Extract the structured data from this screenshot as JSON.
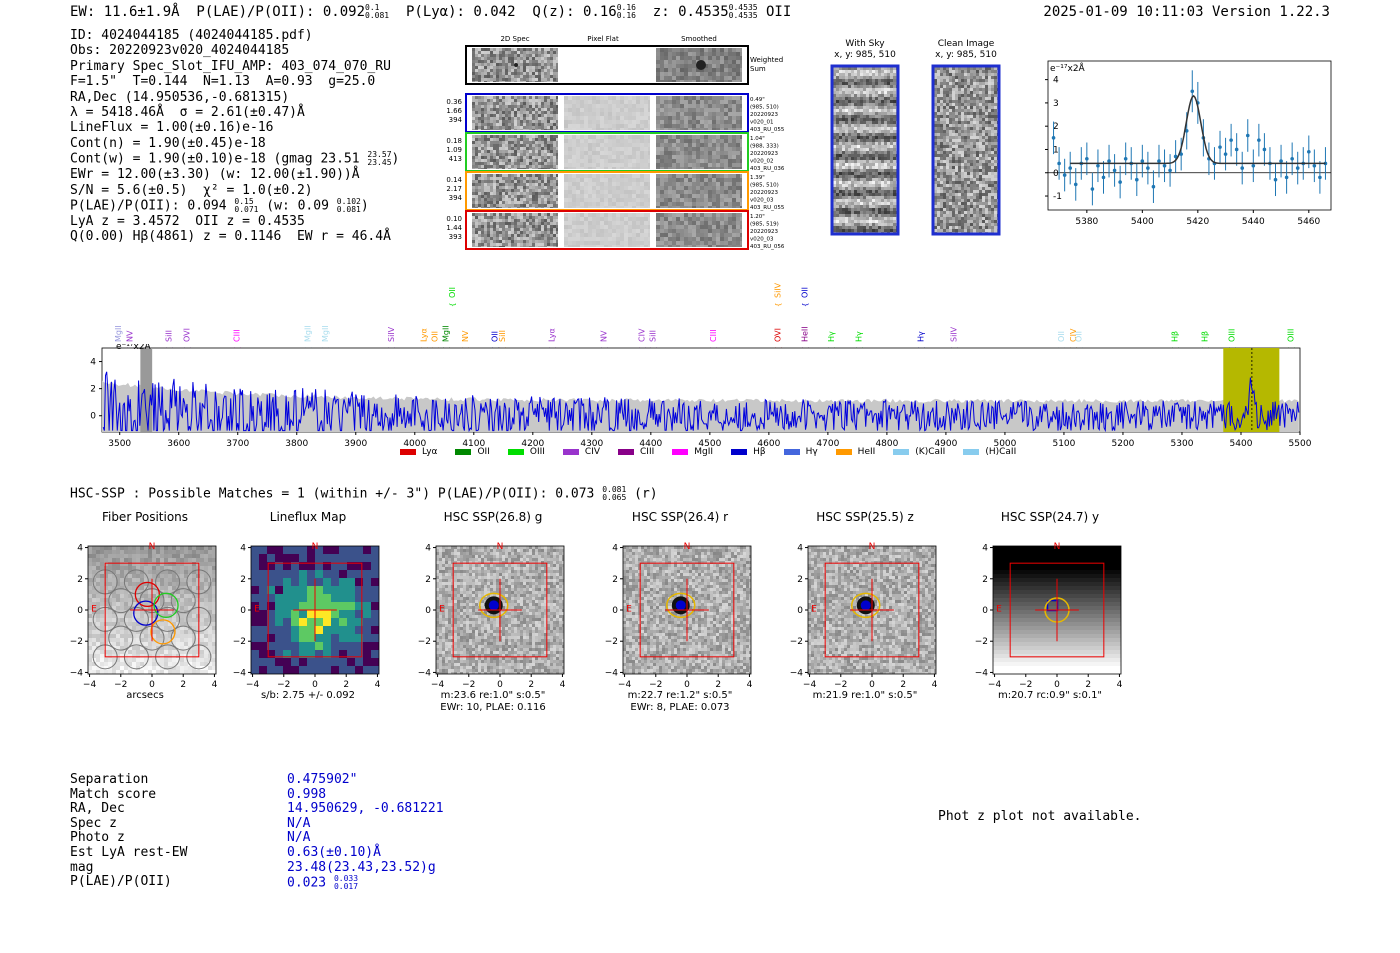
{
  "header": {
    "left": "EW: 11.6±1.9Å  P(LAE)/P(OII): 0.092",
    "plae_hi": "0.1",
    "plae_lo": "0.081",
    "plya": "  P(Lyα): 0.042  Q(z): 0.16",
    "qz_hi": "0.16",
    "qz_lo": "0.16",
    "zpart": "  z: 0.4535",
    "z_hi": "0.4535",
    "z_lo": "0.4535",
    "tail": " OII",
    "datetime": "2025-01-09 10:11:03",
    "version": "Version 1.22.3"
  },
  "info": {
    "lines": [
      "ID: 4024044185 (4024044185.pdf)",
      "Obs: 20220923v020_4024044185",
      "Primary Spec_Slot_IFU_AMP: 403_074_070_RU",
      "F=1.5\"  T=0.144  N=1.13  A=0.93  g=25.0",
      "RA,Dec (14.950536,-0.681315)",
      "λ = 5418.46Å  σ = 2.61(±0.47)Å",
      "LineFlux = 1.00(±0.16)e-16",
      "Cont(n) = 1.90(±0.45)e-18"
    ],
    "contw": "Cont(w) = 1.90(±0.10)e-18 (gmag 23.51",
    "contw_hi": "23.57",
    "contw_lo": "23.45",
    "lines2": [
      "EWr = 12.00(±3.30) (w: 12.00(±1.90))Å",
      "S/N = 5.6(±0.5)  χ² = 1.0(±0.2)"
    ],
    "plae": "P(LAE)/P(OII): 0.094",
    "plae_hi": "0.15",
    "plae_lo": "0.071",
    "plae_w": " (w: 0.09",
    "plae_w_hi": "0.102",
    "plae_w_lo": "0.081",
    "plae_w_end": ")",
    "lines3": [
      "LyA z = 3.4572  OII z = 0.4535",
      "Q(0.00) Hβ(4861) z = 0.1146  EW r = 46.4Å"
    ]
  },
  "spec2d": {
    "col_titles": [
      "2D Spec",
      "Pixel Flat",
      "Smoothed"
    ],
    "weighted_label": "Weighted Sum",
    "rows": [
      {
        "left": [
          "0.36",
          "1.66",
          "394"
        ],
        "right": [
          "0.49\"",
          "(985, 510)",
          "20220923",
          "v020_01",
          "403_RU_055"
        ],
        "color": "#0000cc"
      },
      {
        "left": [
          "0.18",
          "1.09",
          "413"
        ],
        "right": [
          "1.04\"",
          "(988, 333)",
          "20220923",
          "v020_02",
          "403_RU_036"
        ],
        "color": "#22cc22"
      },
      {
        "left": [
          "0.14",
          "2.17",
          "394"
        ],
        "right": [
          "1.39\"",
          "(985, 510)",
          "20220923",
          "v020_03",
          "403_RU_055"
        ],
        "color": "#ff9900"
      },
      {
        "left": [
          "0.10",
          "1.44",
          "393"
        ],
        "right": [
          "1.20\"",
          "(985, 519)",
          "20220923",
          "v020_03",
          "403_RU_056"
        ],
        "color": "#dd0000"
      }
    ]
  },
  "sky": {
    "title1": "With Sky",
    "title2": "x, y: 985, 510"
  },
  "clean": {
    "title1": "Clean Image",
    "title2": "x, y: 985, 510"
  },
  "chart_data": [
    {
      "type": "line",
      "title": "",
      "unit_label": "e⁻¹⁷x2Å",
      "xlim": [
        5366,
        5468
      ],
      "ylim": [
        -1.6,
        4.8
      ],
      "xticks": [
        5380,
        5400,
        5420,
        5440,
        5460
      ],
      "yticks": [
        -1,
        0,
        1,
        2,
        3,
        4
      ],
      "fit_center": 5418.46,
      "fit_sigma": 2.61,
      "fit_amp": 2.9,
      "fit_base": 0.4,
      "x": [
        5368,
        5370,
        5372,
        5374,
        5376,
        5378,
        5380,
        5382,
        5384,
        5386,
        5388,
        5390,
        5392,
        5394,
        5396,
        5398,
        5400,
        5402,
        5404,
        5406,
        5408,
        5410,
        5412,
        5414,
        5416,
        5418,
        5420,
        5422,
        5424,
        5426,
        5428,
        5430,
        5432,
        5434,
        5436,
        5438,
        5440,
        5442,
        5444,
        5446,
        5448,
        5450,
        5452,
        5454,
        5456,
        5458,
        5460,
        5462,
        5464,
        5466
      ],
      "y": [
        1.5,
        0.4,
        -0.1,
        0.2,
        -0.5,
        0.4,
        0.6,
        -0.7,
        0.3,
        -0.2,
        0.5,
        0.1,
        -0.4,
        0.6,
        0.4,
        -0.3,
        0.5,
        0.2,
        -0.6,
        0.5,
        0.3,
        0.1,
        0.7,
        0.8,
        1.8,
        3.5,
        3.0,
        1.5,
        0.6,
        0.4,
        1.1,
        0.8,
        1.4,
        1.0,
        0.2,
        1.6,
        0.3,
        1.4,
        1.0,
        0.4,
        -0.3,
        0.5,
        -0.2,
        0.6,
        0.2,
        0.4,
        0.9,
        0.3,
        -0.2,
        0.4
      ],
      "yerr": [
        0.7,
        0.7,
        0.7,
        0.7,
        0.7,
        0.7,
        0.7,
        0.7,
        0.7,
        0.7,
        0.7,
        0.7,
        0.7,
        0.7,
        0.7,
        0.7,
        0.7,
        0.7,
        0.7,
        0.7,
        0.7,
        0.7,
        0.7,
        0.7,
        0.8,
        0.9,
        0.9,
        0.8,
        0.7,
        0.7,
        0.7,
        0.7,
        0.7,
        0.7,
        0.7,
        0.7,
        0.7,
        0.7,
        0.7,
        0.7,
        0.7,
        0.7,
        0.7,
        0.7,
        0.7,
        0.7,
        0.7,
        0.7,
        0.7,
        0.7
      ]
    },
    {
      "type": "line",
      "title": "",
      "unit_label": "e⁻¹⁷x2Å",
      "xlim": [
        3470,
        5500
      ],
      "ylim": [
        -1.2,
        5.0
      ],
      "xticks": [
        3500,
        3600,
        3700,
        3800,
        3900,
        4000,
        4100,
        4200,
        4300,
        4400,
        4500,
        4600,
        4700,
        4800,
        4900,
        5000,
        5100,
        5200,
        5300,
        5400,
        5500
      ],
      "yticks": [
        0,
        2,
        4
      ],
      "highlight_band": [
        5370,
        5465
      ],
      "highlight_line": 5418.46,
      "gray_band": [
        3535,
        3555
      ],
      "line_markers": [
        {
          "name": "MgII",
          "x": 3497,
          "color": "#9999dd"
        },
        {
          "name": "NV",
          "x": 3517,
          "color": "#9933cc"
        },
        {
          "name": "SiII",
          "x": 3583,
          "color": "#9933cc"
        },
        {
          "name": "OVI",
          "x": 3613,
          "color": "#9933cc"
        },
        {
          "name": "CIII",
          "x": 3698,
          "color": "#ff00ff"
        },
        {
          "name": "MgII",
          "x": 3818,
          "color": "#aaddee"
        },
        {
          "name": "MgII",
          "x": 3848,
          "color": "#aaddee"
        },
        {
          "name": "SiIV",
          "x": 3960,
          "color": "#9933cc"
        },
        {
          "name": "Lyα",
          "x": 4015,
          "color": "#ff9900"
        },
        {
          "name": "OII",
          "x": 4033,
          "color": "#ff9900"
        },
        {
          "name": "MgII",
          "x": 4052,
          "color": "#008800"
        },
        {
          "name": "OII",
          "x": 4063,
          "color": "#00dd00"
        },
        {
          "name": "NV",
          "x": 4085,
          "color": "#ff9900"
        },
        {
          "name": "OII",
          "x": 4135,
          "color": "#0000cc"
        },
        {
          "name": "SiII",
          "x": 4148,
          "color": "#ff9900"
        },
        {
          "name": "Lyα",
          "x": 4232,
          "color": "#9933cc"
        },
        {
          "name": "NV",
          "x": 4320,
          "color": "#9933cc"
        },
        {
          "name": "CIV",
          "x": 4384,
          "color": "#9933cc"
        },
        {
          "name": "SiII",
          "x": 4403,
          "color": "#9933cc"
        },
        {
          "name": "CIII",
          "x": 4505,
          "color": "#ff00ff"
        },
        {
          "name": "SiIV",
          "x": 4615,
          "color": "#ff9900"
        },
        {
          "name": "OVI",
          "x": 4615,
          "color": "#dd0000"
        },
        {
          "name": "OII",
          "x": 4660,
          "color": "#0000cc"
        },
        {
          "name": "HeII",
          "x": 4660,
          "color": "#880088"
        },
        {
          "name": "Hγ",
          "x": 4705,
          "color": "#00dd00"
        },
        {
          "name": "Hγ",
          "x": 4752,
          "color": "#00dd00"
        },
        {
          "name": "Hγ",
          "x": 4857,
          "color": "#0000cc"
        },
        {
          "name": "SiIV",
          "x": 4913,
          "color": "#9933cc"
        },
        {
          "name": "OII",
          "x": 5095,
          "color": "#aaddee"
        },
        {
          "name": "CIV",
          "x": 5115,
          "color": "#ff9900"
        },
        {
          "name": "OII",
          "x": 5125,
          "color": "#aaddee"
        },
        {
          "name": "Hβ",
          "x": 5287,
          "color": "#00dd00"
        },
        {
          "name": "Hβ",
          "x": 5338,
          "color": "#00dd00"
        },
        {
          "name": "OIII",
          "x": 5384,
          "color": "#00dd00"
        },
        {
          "name": "OIII",
          "x": 5484,
          "color": "#00dd00"
        }
      ],
      "legend": [
        {
          "name": "Lyα",
          "color": "#dd0000"
        },
        {
          "name": "OII",
          "color": "#008800"
        },
        {
          "name": "OIII",
          "color": "#00dd00"
        },
        {
          "name": "CIV",
          "color": "#9933cc"
        },
        {
          "name": "CIII",
          "color": "#880088"
        },
        {
          "name": "MgII",
          "color": "#ff00ff"
        },
        {
          "name": "Hβ",
          "color": "#0000cc"
        },
        {
          "name": "Hγ",
          "color": "#4466dd"
        },
        {
          "name": "HeII",
          "color": "#ff9900"
        },
        {
          "name": "(K)CaII",
          "color": "#88ccee"
        },
        {
          "name": "(H)CaII",
          "color": "#88ccee"
        }
      ]
    }
  ],
  "hsc_line": {
    "text": "HSC-SSP : Possible Matches = 1 (within +/- 3\")  P(LAE)/P(OII): 0.073",
    "hi": "0.081",
    "lo": "0.065",
    "tail": " (r)"
  },
  "cutouts": [
    {
      "title": "Fiber Positions",
      "caption": "arcsecs",
      "caption2": "",
      "kind": "fiber"
    },
    {
      "title": "Lineflux Map",
      "caption": "s/b: 2.75 +/- 0.092",
      "caption2": "",
      "kind": "flux"
    },
    {
      "title": "HSC SSP(26.8) g",
      "caption": "m:23.6  re:1.0\"  s:0.5\"",
      "caption2": "EWr: 10, PLAE: 0.116",
      "kind": "hsc"
    },
    {
      "title": "HSC SSP(26.4) r",
      "caption": "m:22.7  re:1.2\"  s:0.5\"",
      "caption2": "EWr: 8, PLAE: 0.073",
      "kind": "hsc"
    },
    {
      "title": "HSC SSP(25.5) z",
      "caption": "m:21.9  re:1.0\"  s:0.5\"",
      "caption2": "",
      "kind": "hsc"
    },
    {
      "title": "HSC SSP(24.7) y",
      "caption": "m:20.7 rc:0.9\"  s:0.1\"",
      "caption2": "",
      "kind": "yband"
    }
  ],
  "cutout_axis": {
    "ticks": [
      "4",
      "2",
      "0",
      "−2",
      "−4"
    ],
    "xticks": [
      "−4",
      "−2",
      "0",
      "2",
      "4"
    ],
    "north": "N",
    "east": "E"
  },
  "bottom": {
    "rows": [
      {
        "k": "Separation",
        "v": "0.475902\""
      },
      {
        "k": "Match score",
        "v": "0.998"
      },
      {
        "k": "RA, Dec",
        "v": "14.950629, -0.681221"
      },
      {
        "k": "Spec z",
        "v": "N/A"
      },
      {
        "k": "Photo z",
        "v": "N/A"
      },
      {
        "k": "Est LyA rest-EW",
        "v": "0.63(±0.10)Å"
      },
      {
        "k": "mag",
        "v": "23.48(23.43,23.52)g"
      }
    ],
    "plae_k": "P(LAE)/P(OII)",
    "plae_v": "0.023",
    "plae_hi": "0.033",
    "plae_lo": "0.017"
  },
  "photz": "Phot z plot not available."
}
